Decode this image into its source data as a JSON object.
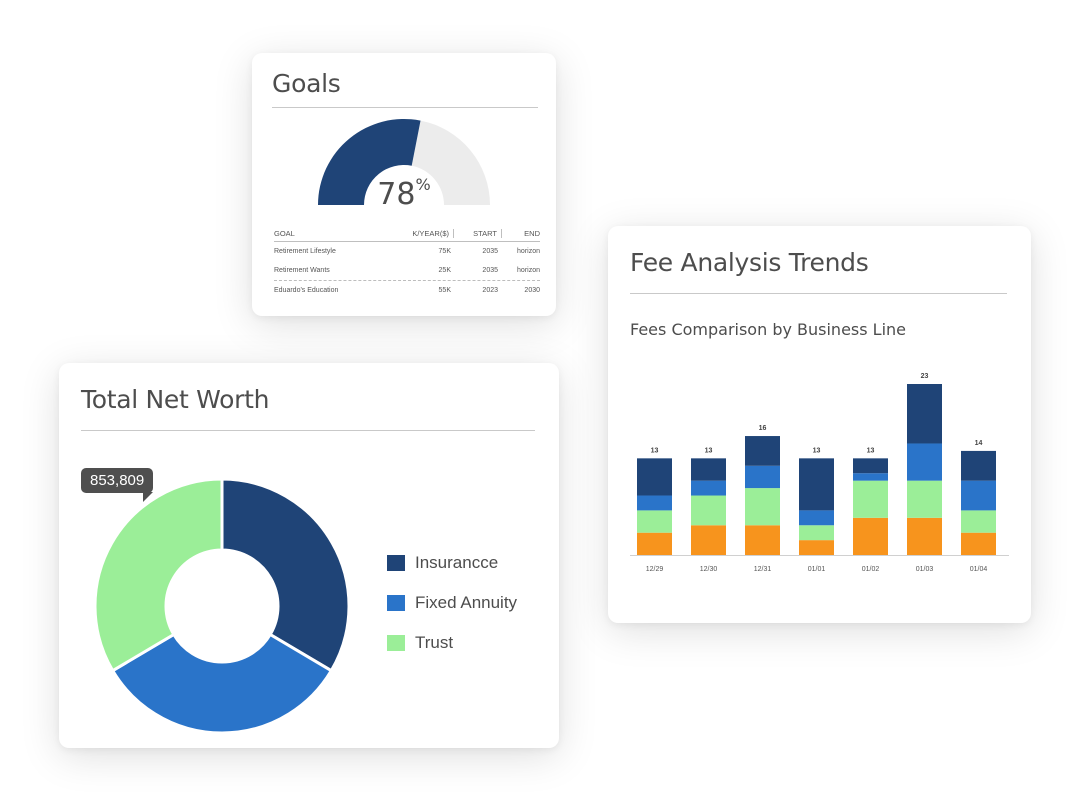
{
  "goals": {
    "title": "Goals",
    "gauge_percent": 78,
    "gauge_value": "78",
    "gauge_unit": "%",
    "gauge_color": "#1f4477",
    "gauge_track_color": "#ececec",
    "columns": [
      "GOAL",
      "K/YEAR($)",
      "START",
      "END"
    ],
    "rows": [
      {
        "goal": "Retirement Lifestyle",
        "amount": "75K",
        "start": "2035",
        "end": "horizon"
      },
      {
        "goal": "Retirement Wants",
        "amount": "25K",
        "start": "2035",
        "end": "horizon"
      },
      {
        "goal": "Eduardo's Education",
        "amount": "55K",
        "start": "2023",
        "end": "2030"
      }
    ]
  },
  "networth": {
    "title": "Total Net Worth",
    "tooltip": "853,809",
    "legend": [
      {
        "label": "Insurancce",
        "color": "#1f4477"
      },
      {
        "label": "Fixed Annuity",
        "color": "#2a74c9"
      },
      {
        "label": "Trust",
        "color": "#9bee98"
      }
    ]
  },
  "fees": {
    "title": "Fee Analysis Trends",
    "subtitle": "Fees Comparison by Business Line"
  },
  "chart_data": [
    {
      "type": "pie",
      "donut": true,
      "labels": [
        "Insurancce",
        "Fixed Annuity",
        "Trust"
      ],
      "values": [
        33.5,
        33.0,
        33.5
      ],
      "colors": [
        "#1f4477",
        "#2a74c9",
        "#9bee98"
      ],
      "annotation": "853,809"
    },
    {
      "type": "bar",
      "stacked": true,
      "title": "Fees Comparison by Business Line",
      "categories": [
        "12/29",
        "12/30",
        "12/31",
        "01/01",
        "01/02",
        "01/03",
        "01/04"
      ],
      "totals": [
        13,
        13,
        16,
        13,
        13,
        23,
        14
      ],
      "ylim": [
        0,
        23
      ],
      "series": [
        {
          "color": "#f7941d",
          "values": [
            3,
            4,
            4,
            2,
            5,
            5,
            3
          ]
        },
        {
          "color": "#9bee98",
          "values": [
            3,
            4,
            5,
            2,
            5,
            5,
            3
          ]
        },
        {
          "color": "#2a74c9",
          "values": [
            2,
            2,
            3,
            2,
            1,
            5,
            4
          ]
        },
        {
          "color": "#1f4477",
          "values": [
            5,
            3,
            4,
            7,
            2,
            8,
            4
          ]
        }
      ]
    }
  ]
}
